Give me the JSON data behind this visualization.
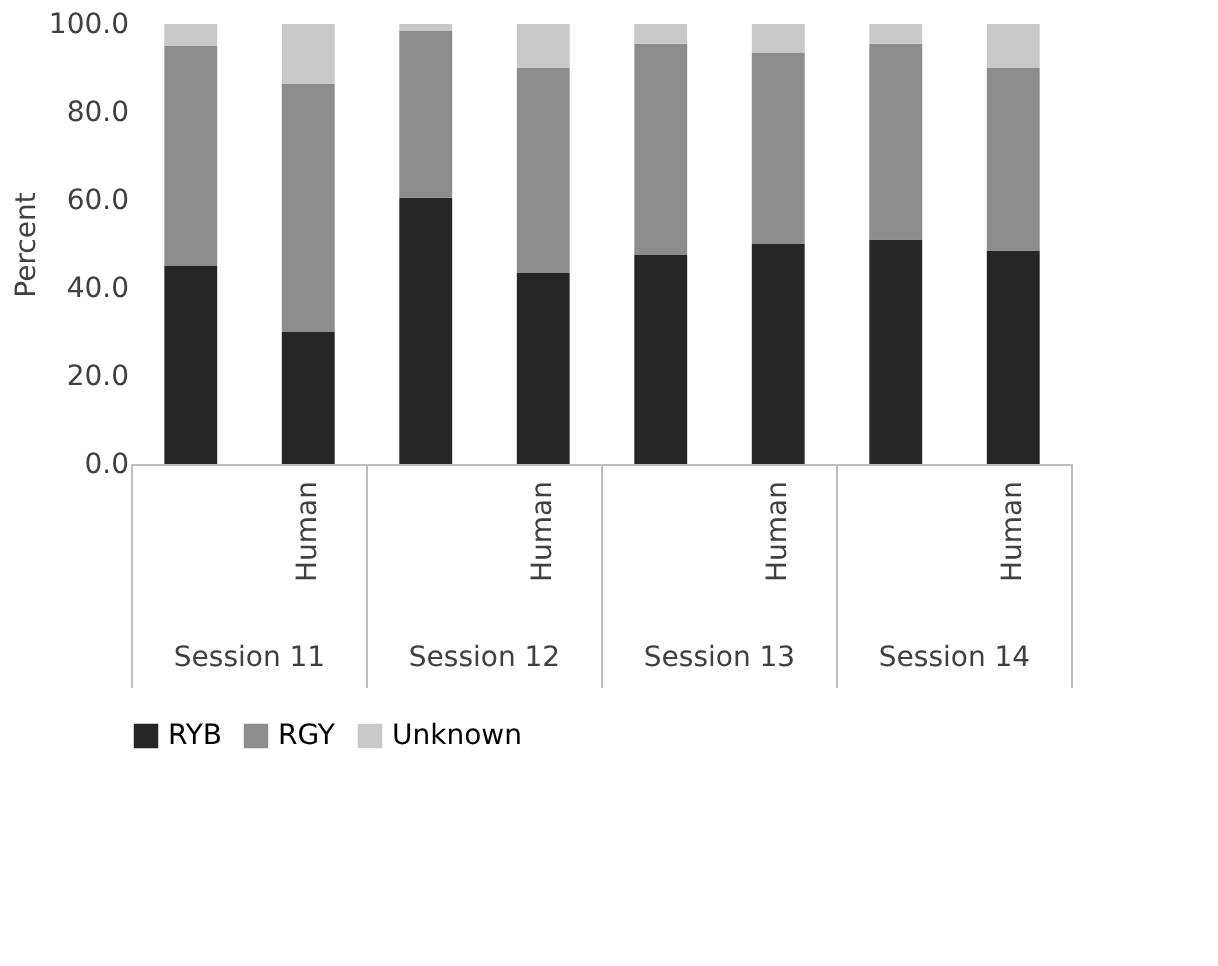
{
  "chart_data": {
    "type": "bar",
    "stacked": true,
    "ylabel": "Percent",
    "categories": [
      null,
      "Human",
      null,
      "Human",
      null,
      "Human",
      null,
      "Human"
    ],
    "annotations": [
      "Session 11",
      "Session 12",
      "Session 13",
      "Session 14"
    ],
    "series": [
      {
        "name": "RYB",
        "color": "#262626",
        "values": [
          45,
          30,
          60.5,
          43.5,
          47.5,
          50,
          51,
          48.5
        ]
      },
      {
        "name": "RGY",
        "color": "#8c8c8c",
        "values": [
          50,
          56.5,
          38,
          46.5,
          48,
          43.5,
          44.5,
          41.5
        ]
      },
      {
        "name": "Unknown",
        "color": "#c8c8c8",
        "values": [
          5,
          13.5,
          1.5,
          10,
          4.5,
          6.5,
          4.5,
          10
        ]
      }
    ],
    "ylim": [
      0,
      100
    ],
    "yticks": [
      {
        "value": 0,
        "label": "0.0"
      },
      {
        "value": 20,
        "label": "20.0"
      },
      {
        "value": 40,
        "label": "40.0"
      },
      {
        "value": 60,
        "label": "60.0"
      },
      {
        "value": 80,
        "label": "80.0"
      },
      {
        "value": 100,
        "label": "100.0"
      }
    ],
    "grid": false,
    "legend": "bottom"
  }
}
